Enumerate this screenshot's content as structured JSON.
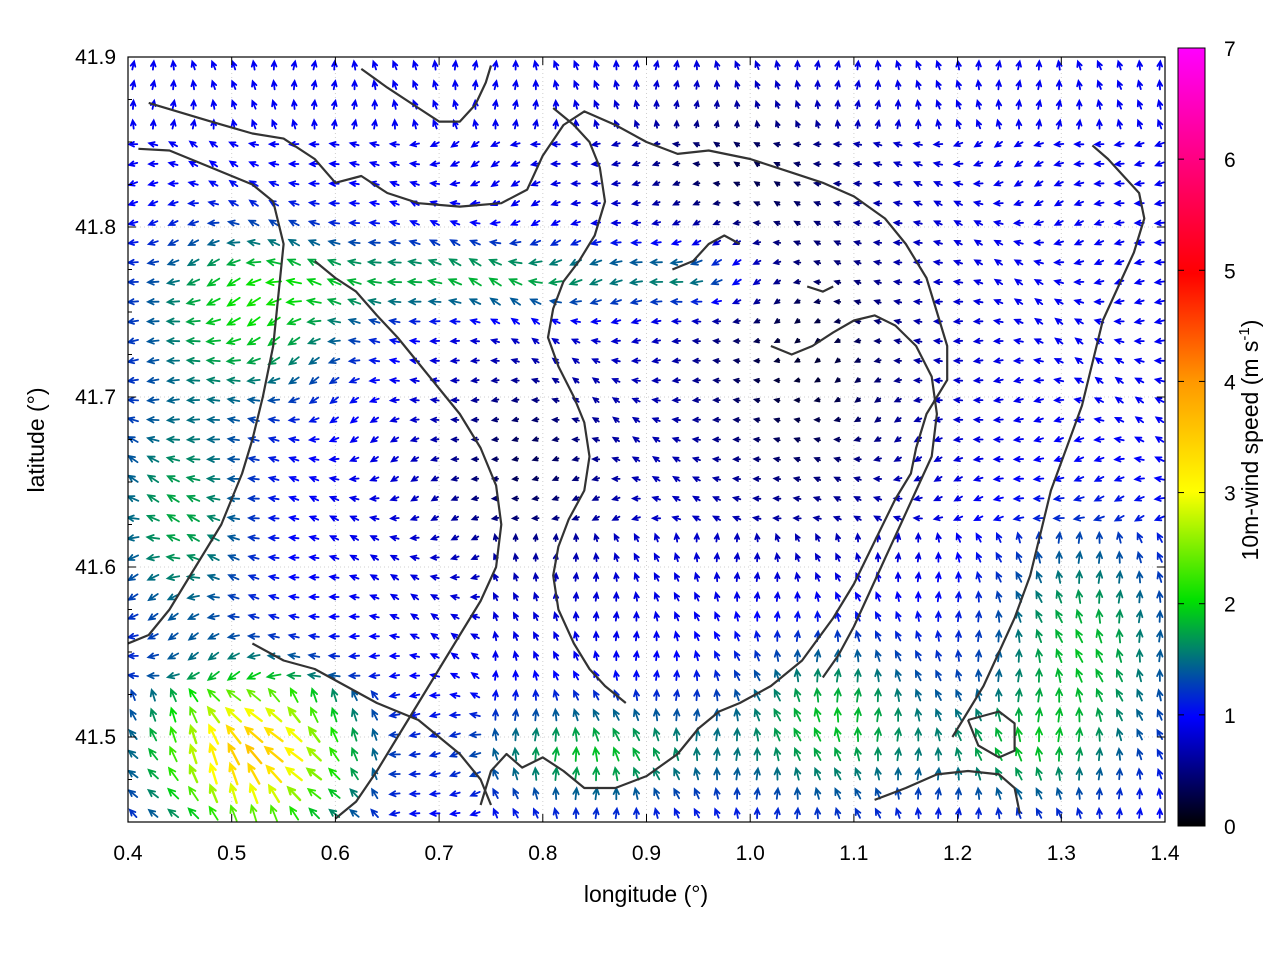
{
  "chart_data": {
    "type": "vector-field",
    "xlabel": "longitude (°)",
    "ylabel": "latitude (°)",
    "colorbar_label": "10m-wind speed (m s",
    "colorbar_label_sup": "-1",
    "colorbar_label_close": ")",
    "xlim": [
      0.4,
      1.4
    ],
    "ylim": [
      41.45,
      41.9
    ],
    "xticks": [
      0.4,
      0.5,
      0.6,
      0.7,
      0.8,
      0.9,
      1.0,
      1.1,
      1.2,
      1.3,
      1.4
    ],
    "xtick_labels": [
      "0.4",
      "0.5",
      "0.6",
      "0.7",
      "0.8",
      "0.9",
      "1.0",
      "1.1",
      "1.2",
      "1.3",
      "1.4"
    ],
    "yticks": [
      41.5,
      41.6,
      41.7,
      41.8,
      41.9
    ],
    "ytick_labels": [
      "41.5",
      "41.6",
      "41.7",
      "41.8",
      "41.9"
    ],
    "colorbar_range": [
      0,
      7
    ],
    "colorbar_ticks": [
      0,
      1,
      2,
      3,
      4,
      5,
      6,
      7
    ],
    "colorbar_tick_labels": [
      "0",
      "1",
      "2",
      "3",
      "4",
      "5",
      "6",
      "7"
    ],
    "colormap": [
      "#000000",
      "#0000ff",
      "#00e000",
      "#ffff00",
      "#ff9900",
      "#ff0000",
      "#ff00ff"
    ],
    "grid": true,
    "contour_color": "#333333",
    "contours": [
      [
        [
          0.42,
          41.873
        ],
        [
          0.48,
          41.862
        ],
        [
          0.52,
          41.855
        ],
        [
          0.55,
          41.852
        ],
        [
          0.58,
          41.84
        ],
        [
          0.6,
          41.826
        ],
        [
          0.625,
          41.83
        ],
        [
          0.65,
          41.82
        ],
        [
          0.68,
          41.814
        ],
        [
          0.72,
          41.812
        ],
        [
          0.76,
          41.814
        ],
        [
          0.785,
          41.822
        ],
        [
          0.8,
          41.842
        ],
        [
          0.82,
          41.86
        ],
        [
          0.84,
          41.868
        ],
        [
          0.87,
          41.86
        ],
        [
          0.9,
          41.85
        ],
        [
          0.93,
          41.843
        ],
        [
          0.96,
          41.845
        ],
        [
          1.0,
          41.84
        ],
        [
          1.04,
          41.832
        ],
        [
          1.07,
          41.826
        ],
        [
          1.1,
          41.818
        ],
        [
          1.13,
          41.805
        ],
        [
          1.15,
          41.79
        ],
        [
          1.17,
          41.77
        ],
        [
          1.18,
          41.75
        ],
        [
          1.19,
          41.73
        ],
        [
          1.19,
          41.71
        ],
        [
          1.17,
          41.69
        ],
        [
          1.16,
          41.67
        ],
        [
          1.155,
          41.655
        ],
        [
          1.14,
          41.64
        ],
        [
          1.12,
          41.615
        ],
        [
          1.1,
          41.59
        ],
        [
          1.08,
          41.57
        ],
        [
          1.05,
          41.545
        ],
        [
          1.02,
          41.53
        ],
        [
          0.99,
          41.52
        ],
        [
          0.97,
          41.515
        ],
        [
          0.95,
          41.505
        ],
        [
          0.93,
          41.49
        ],
        [
          0.9,
          41.477
        ],
        [
          0.87,
          41.47
        ],
        [
          0.84,
          41.47
        ],
        [
          0.82,
          41.48
        ],
        [
          0.8,
          41.488
        ],
        [
          0.78,
          41.482
        ],
        [
          0.765,
          41.49
        ],
        [
          0.75,
          41.48
        ],
        [
          0.74,
          41.46
        ]
      ],
      [
        [
          0.41,
          41.846
        ],
        [
          0.44,
          41.845
        ],
        [
          0.48,
          41.835
        ],
        [
          0.52,
          41.825
        ],
        [
          0.54,
          41.815
        ],
        [
          0.55,
          41.79
        ],
        [
          0.545,
          41.76
        ],
        [
          0.54,
          41.73
        ],
        [
          0.53,
          41.7
        ],
        [
          0.52,
          41.675
        ],
        [
          0.51,
          41.655
        ],
        [
          0.5,
          41.64
        ],
        [
          0.49,
          41.625
        ],
        [
          0.475,
          41.61
        ],
        [
          0.46,
          41.595
        ],
        [
          0.44,
          41.575
        ],
        [
          0.42,
          41.56
        ],
        [
          0.4,
          41.555
        ]
      ],
      [
        [
          0.625,
          41.893
        ],
        [
          0.65,
          41.882
        ],
        [
          0.68,
          41.87
        ],
        [
          0.7,
          41.862
        ],
        [
          0.72,
          41.862
        ],
        [
          0.735,
          41.872
        ],
        [
          0.745,
          41.885
        ],
        [
          0.75,
          41.895
        ]
      ],
      [
        [
          0.58,
          41.78
        ],
        [
          0.6,
          41.77
        ],
        [
          0.62,
          41.762
        ],
        [
          0.64,
          41.748
        ],
        [
          0.66,
          41.735
        ],
        [
          0.68,
          41.72
        ],
        [
          0.7,
          41.705
        ],
        [
          0.72,
          41.69
        ],
        [
          0.74,
          41.67
        ],
        [
          0.755,
          41.648
        ],
        [
          0.76,
          41.625
        ],
        [
          0.755,
          41.6
        ],
        [
          0.74,
          41.58
        ],
        [
          0.72,
          41.56
        ],
        [
          0.7,
          41.54
        ],
        [
          0.68,
          41.52
        ],
        [
          0.66,
          41.5
        ],
        [
          0.64,
          41.48
        ],
        [
          0.62,
          41.462
        ],
        [
          0.6,
          41.452
        ]
      ],
      [
        [
          0.81,
          41.87
        ],
        [
          0.83,
          41.86
        ],
        [
          0.845,
          41.85
        ],
        [
          0.855,
          41.835
        ],
        [
          0.86,
          41.815
        ],
        [
          0.85,
          41.795
        ],
        [
          0.835,
          41.78
        ],
        [
          0.82,
          41.768
        ],
        [
          0.81,
          41.752
        ],
        [
          0.805,
          41.735
        ],
        [
          0.815,
          41.718
        ],
        [
          0.83,
          41.7
        ],
        [
          0.84,
          41.685
        ],
        [
          0.845,
          41.665
        ],
        [
          0.84,
          41.645
        ],
        [
          0.825,
          41.628
        ],
        [
          0.815,
          41.612
        ],
        [
          0.81,
          41.595
        ],
        [
          0.815,
          41.575
        ],
        [
          0.83,
          41.555
        ],
        [
          0.845,
          41.54
        ],
        [
          0.86,
          41.53
        ],
        [
          0.88,
          41.52
        ]
      ],
      [
        [
          1.02,
          41.73
        ],
        [
          1.04,
          41.725
        ],
        [
          1.06,
          41.73
        ],
        [
          1.08,
          41.738
        ],
        [
          1.1,
          41.745
        ],
        [
          1.12,
          41.748
        ],
        [
          1.14,
          41.742
        ],
        [
          1.16,
          41.73
        ],
        [
          1.175,
          41.712
        ],
        [
          1.18,
          41.69
        ],
        [
          1.175,
          41.665
        ],
        [
          1.16,
          41.645
        ],
        [
          1.145,
          41.625
        ],
        [
          1.13,
          41.605
        ],
        [
          1.115,
          41.585
        ],
        [
          1.1,
          41.565
        ],
        [
          1.085,
          41.548
        ],
        [
          1.07,
          41.535
        ]
      ],
      [
        [
          1.33,
          41.848
        ],
        [
          1.345,
          41.84
        ],
        [
          1.36,
          41.83
        ],
        [
          1.375,
          41.82
        ],
        [
          1.38,
          41.805
        ],
        [
          1.37,
          41.785
        ],
        [
          1.355,
          41.765
        ],
        [
          1.34,
          41.745
        ],
        [
          1.33,
          41.72
        ],
        [
          1.32,
          41.695
        ],
        [
          1.305,
          41.67
        ],
        [
          1.29,
          41.645
        ],
        [
          1.28,
          41.62
        ],
        [
          1.27,
          41.595
        ],
        [
          1.255,
          41.57
        ],
        [
          1.24,
          41.55
        ],
        [
          1.225,
          41.53
        ],
        [
          1.21,
          41.515
        ],
        [
          1.195,
          41.5
        ]
      ],
      [
        [
          0.52,
          41.555
        ],
        [
          0.55,
          41.545
        ],
        [
          0.58,
          41.54
        ],
        [
          0.61,
          41.53
        ],
        [
          0.64,
          41.52
        ],
        [
          0.66,
          41.515
        ],
        [
          0.68,
          41.51
        ],
        [
          0.7,
          41.5
        ],
        [
          0.72,
          41.49
        ],
        [
          0.74,
          41.475
        ],
        [
          0.75,
          41.46
        ]
      ],
      [
        [
          1.21,
          41.51
        ],
        [
          1.24,
          41.515
        ],
        [
          1.255,
          41.508
        ],
        [
          1.255,
          41.492
        ],
        [
          1.24,
          41.488
        ],
        [
          1.22,
          41.495
        ],
        [
          1.21,
          41.51
        ]
      ],
      [
        [
          1.12,
          41.463
        ],
        [
          1.15,
          41.47
        ],
        [
          1.18,
          41.478
        ],
        [
          1.21,
          41.48
        ],
        [
          1.24,
          41.478
        ],
        [
          1.255,
          41.47
        ],
        [
          1.26,
          41.455
        ]
      ],
      [
        [
          0.925,
          41.775
        ],
        [
          0.945,
          41.78
        ],
        [
          0.96,
          41.79
        ],
        [
          0.975,
          41.795
        ],
        [
          0.99,
          41.79
        ]
      ],
      [
        [
          1.055,
          41.765
        ],
        [
          1.07,
          41.762
        ],
        [
          1.08,
          41.765
        ]
      ]
    ],
    "notes_visible": false
  }
}
